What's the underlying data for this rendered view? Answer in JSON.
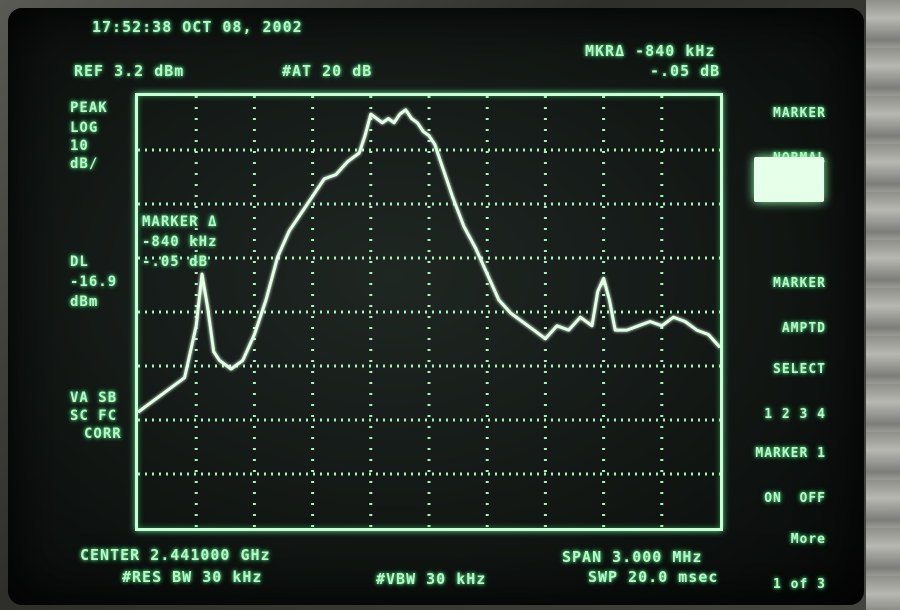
{
  "header": {
    "timestamp": "17:52:38 OCT 08, 2002",
    "ref_level": "REF 3.2 dBm",
    "attenuation": "#AT 20 dB",
    "marker_readout_label": "MKRΔ -840 kHz",
    "marker_readout_value": "-.05 dB"
  },
  "left_annotations": {
    "detector": "PEAK",
    "scale_line1": "LOG",
    "scale_line2": "10",
    "scale_line3": "dB/",
    "display_line_label": "DL",
    "display_line_value": "-16.9",
    "display_line_unit": "dBm",
    "va_sb": "VA SB",
    "sc_fc": "SC FC",
    "corr": "CORR"
  },
  "marker_box": {
    "title": "MARKER Δ",
    "freq": "-840 kHz",
    "amp": "-.05 dB"
  },
  "footer": {
    "center": "CENTER 2.441000 GHz",
    "res_bw": "#RES BW 30 kHz",
    "vbw": "#VBW 30 kHz",
    "span": "SPAN 3.000 MHz",
    "sweep": "SWP 20.0 msec"
  },
  "softkeys": {
    "marker_normal_1": "MARKER",
    "marker_normal_2": "NORMAL",
    "marker_amptd_1": "MARKER",
    "marker_amptd_2": "AMPTD",
    "select_1": "SELECT",
    "select_2": "1 2 3 4",
    "marker1_1": "MARKER 1",
    "marker1_2": "ON  OFF",
    "more_1": "More",
    "more_2": "1 of 3"
  },
  "chart_data": {
    "type": "line",
    "xlim": [
      -1.5,
      1.5
    ],
    "ylim": [
      -96.8,
      3.2
    ],
    "x_unit": "MHz offset from center",
    "y_unit": "dBm",
    "display_line_dbm": -16.9,
    "series": [
      {
        "x": [
          -1.5,
          -1.44,
          -1.38,
          -1.32,
          -1.26,
          -1.2,
          -1.17,
          -1.14,
          -1.11,
          -1.08,
          -1.02,
          -0.96,
          -0.9,
          -0.84,
          -0.78,
          -0.72,
          -0.66,
          -0.6,
          -0.54,
          -0.48,
          -0.42,
          -0.36,
          -0.33,
          -0.3,
          -0.27,
          -0.24,
          -0.21,
          -0.18,
          -0.15,
          -0.12,
          -0.09,
          -0.06,
          -0.03,
          0.0,
          0.03,
          0.06,
          0.09,
          0.12,
          0.18,
          0.24,
          0.3,
          0.36,
          0.42,
          0.48,
          0.54,
          0.6,
          0.66,
          0.72,
          0.78,
          0.84,
          0.87,
          0.9,
          0.93,
          0.96,
          1.02,
          1.08,
          1.14,
          1.2,
          1.26,
          1.32,
          1.38,
          1.44,
          1.5
        ],
        "y": [
          -70,
          -68,
          -66,
          -64,
          -62,
          -50,
          -38,
          -46,
          -56,
          -58,
          -60,
          -58,
          -52,
          -44,
          -34,
          -28,
          -24,
          -20,
          -16,
          -15,
          -12,
          -10,
          -6,
          -1,
          -2,
          -3,
          -2,
          -3,
          -1,
          0,
          -2,
          -3,
          -5,
          -6,
          -8,
          -12,
          -16,
          -20,
          -27,
          -32,
          -38,
          -44,
          -47,
          -49,
          -51,
          -53,
          -50,
          -51,
          -48,
          -50,
          -42,
          -39,
          -44,
          -51,
          -51,
          -50,
          -49,
          -50,
          -48,
          -49,
          -51,
          -52,
          -55
        ]
      }
    ]
  }
}
